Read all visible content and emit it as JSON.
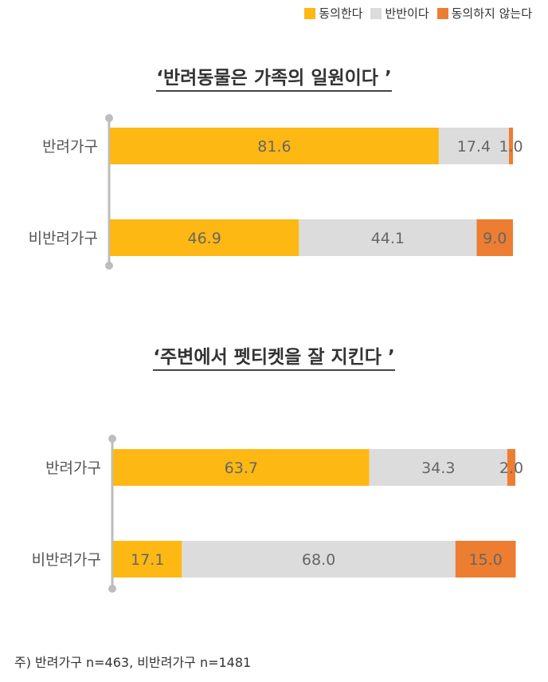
{
  "legend": [
    {
      "label": "동의한다",
      "color": "#FDB813"
    },
    {
      "label": "반반이다",
      "color": "#DCDCDC"
    },
    {
      "label": "동의하지 않는다",
      "color": "#ED7D31"
    }
  ],
  "chart_data": [
    {
      "type": "bar",
      "stacked": true,
      "orientation": "horizontal",
      "title": "‘반려동물은 가족의 일원이다 ’",
      "categories": [
        "반려가구",
        "비반려가구"
      ],
      "series": [
        {
          "name": "동의한다",
          "values": [
            81.6,
            46.9
          ],
          "labels": [
            "81.6",
            "46.9"
          ]
        },
        {
          "name": "반반이다",
          "values": [
            17.4,
            44.1
          ],
          "labels": [
            "17.4",
            "44.1"
          ]
        },
        {
          "name": "동의하지 않는다",
          "values": [
            1.0,
            9.0
          ],
          "labels": [
            "1.0",
            "9.0"
          ]
        }
      ],
      "xlim": [
        0,
        100
      ]
    },
    {
      "type": "bar",
      "stacked": true,
      "orientation": "horizontal",
      "title": "‘주변에서 펫티켓을 잘 지킨다 ’",
      "categories": [
        "반려가구",
        "비반려가구"
      ],
      "series": [
        {
          "name": "동의한다",
          "values": [
            63.7,
            17.1
          ],
          "labels": [
            "63.7",
            "17.1"
          ]
        },
        {
          "name": "반반이다",
          "values": [
            34.3,
            68.0
          ],
          "labels": [
            "34.3",
            "68.0"
          ]
        },
        {
          "name": "동의하지 않는다",
          "values": [
            2.0,
            15.0
          ],
          "labels": [
            "2.0",
            "15.0"
          ]
        }
      ],
      "xlim": [
        0,
        100
      ]
    }
  ],
  "note": "주) 반려가구 n=463, 비반려가구 n=1481"
}
